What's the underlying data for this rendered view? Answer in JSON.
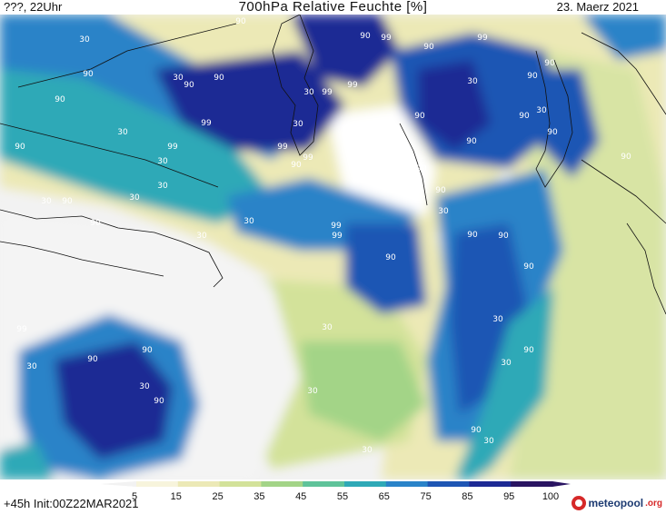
{
  "header": {
    "left": "???, 22Uhr",
    "title": "700hPa Relative Feuchte [%]",
    "date": "23. Maerz 2021"
  },
  "footer": {
    "run_info": "+45h Init:00Z22MAR2021",
    "logo_main": "meteopool",
    "logo_tld": ".org"
  },
  "colorbar": {
    "ticks": [
      "5",
      "15",
      "25",
      "35",
      "45",
      "55",
      "65",
      "75",
      "85",
      "95",
      "100"
    ],
    "colors": [
      "#f2f2f2",
      "#f7f4dc",
      "#ece9b6",
      "#d3e29a",
      "#a3d487",
      "#5fc39a",
      "#2fa9b7",
      "#2a83c8",
      "#1e56b4",
      "#1d2a94",
      "#2a1462"
    ]
  },
  "contour_labels": [
    "90",
    "30",
    "90",
    "99",
    "90",
    "99",
    "90",
    "90",
    "30",
    "90",
    "99",
    "90",
    "30",
    "90",
    "90",
    "30",
    "99",
    "30",
    "90",
    "90",
    "90",
    "30",
    "30",
    "99",
    "99",
    "99",
    "30",
    "90",
    "99",
    "90",
    "90",
    "90",
    "30",
    "90",
    "90",
    "90",
    "30",
    "90",
    "90",
    "30",
    "30",
    "99",
    "99",
    "30",
    "30",
    "90",
    "90",
    "90",
    "99",
    "90",
    "30",
    "30",
    "30",
    "90",
    "30",
    "90",
    "90",
    "30",
    "30",
    "30",
    "90",
    "90",
    "30"
  ]
}
